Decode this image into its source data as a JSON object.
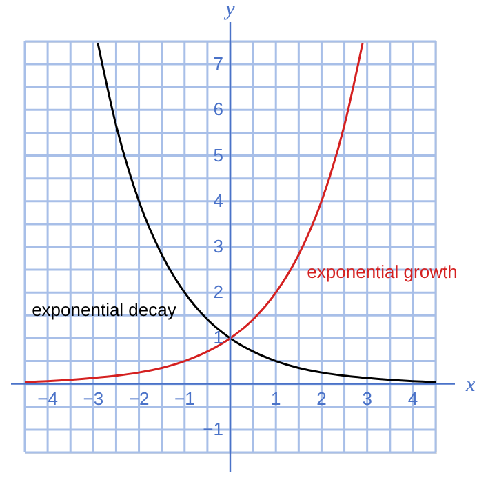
{
  "chart_data": {
    "type": "line",
    "xlabel": "x",
    "ylabel": "y",
    "xlim": [
      -4.5,
      4.5
    ],
    "ylim": [
      -1.5,
      7.5
    ],
    "xticks": [
      {
        "value": -4.5,
        "label": null
      },
      -4,
      {
        "value": -3.5,
        "label": null
      },
      -3,
      {
        "value": -2.5,
        "label": null
      },
      -2,
      {
        "value": -1.5,
        "label": null
      },
      -1,
      {
        "value": -0.5,
        "label": null
      },
      {
        "value": 0,
        "label": null
      },
      {
        "value": 0.5,
        "label": null
      },
      1,
      {
        "value": 1.5,
        "label": null
      },
      2,
      {
        "value": 2.5,
        "label": null
      },
      3,
      {
        "value": 3.5,
        "label": null
      },
      4,
      {
        "value": 4.5,
        "label": null
      }
    ],
    "yticks": [
      {
        "value": -1.5,
        "label": null
      },
      -1,
      {
        "value": -0.5,
        "label": null
      },
      {
        "value": 0,
        "label": null
      },
      {
        "value": 0.5,
        "label": null
      },
      1,
      {
        "value": 1.5,
        "label": null
      },
      2,
      {
        "value": 2.5,
        "label": null
      },
      3,
      {
        "value": 3.5,
        "label": null
      },
      4,
      {
        "value": 4.5,
        "label": null
      },
      5,
      {
        "value": 5.5,
        "label": null
      },
      6,
      {
        "value": 6.5,
        "label": null
      },
      7,
      {
        "value": 7.5,
        "label": null
      }
    ],
    "grid": true,
    "series": [
      {
        "name": "exponential decay",
        "color": "#000000",
        "x": [
          -2.9,
          -2.5,
          -2,
          -1.5,
          -1,
          -0.5,
          0,
          0.5,
          1,
          1.5,
          2,
          2.5,
          3,
          3.5,
          4,
          4.5
        ],
        "values": [
          7.46,
          5.66,
          4,
          2.83,
          2,
          1.41,
          1,
          0.71,
          0.5,
          0.35,
          0.25,
          0.18,
          0.13,
          0.09,
          0.06,
          0.04
        ]
      },
      {
        "name": "exponential growth",
        "color": "#d42020",
        "x": [
          -4.5,
          -4,
          -3.5,
          -3,
          -2.5,
          -2,
          -1.5,
          -1,
          -0.5,
          0,
          0.5,
          1,
          1.5,
          2,
          2.5,
          2.9
        ],
        "values": [
          0.04,
          0.06,
          0.09,
          0.13,
          0.18,
          0.25,
          0.35,
          0.5,
          0.71,
          1,
          1.41,
          2,
          2.83,
          4,
          5.66,
          7.46
        ]
      }
    ],
    "legend": false
  }
}
